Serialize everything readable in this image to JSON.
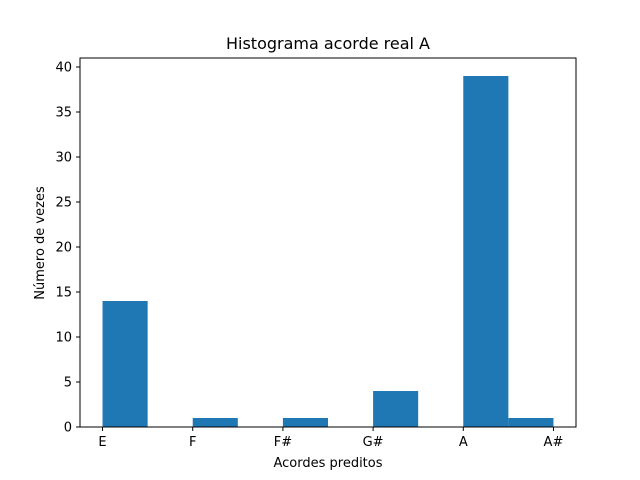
{
  "chart_data": {
    "type": "bar",
    "title": "Histograma acorde real A",
    "xlabel": "Acordes preditos",
    "ylabel": "Número de vezes",
    "categories": [
      "E",
      "F",
      "F#",
      "G#",
      "A",
      "A#"
    ],
    "bins": [
      {
        "start": 0.0,
        "end": 0.5,
        "value": 14
      },
      {
        "start": 0.5,
        "end": 1.0,
        "value": 0
      },
      {
        "start": 1.0,
        "end": 1.5,
        "value": 1
      },
      {
        "start": 1.5,
        "end": 2.0,
        "value": 0
      },
      {
        "start": 2.0,
        "end": 2.5,
        "value": 1
      },
      {
        "start": 2.5,
        "end": 3.0,
        "value": 0
      },
      {
        "start": 3.0,
        "end": 3.5,
        "value": 4
      },
      {
        "start": 3.5,
        "end": 4.0,
        "value": 0
      },
      {
        "start": 4.0,
        "end": 4.5,
        "value": 39
      },
      {
        "start": 4.5,
        "end": 5.0,
        "value": 1
      }
    ],
    "yticks": [
      0,
      5,
      10,
      15,
      20,
      25,
      30,
      35,
      40
    ],
    "xlim": [
      -0.25,
      5.25
    ],
    "ylim": [
      0,
      41
    ],
    "grid": false,
    "bar_color": "#1f77b4"
  }
}
